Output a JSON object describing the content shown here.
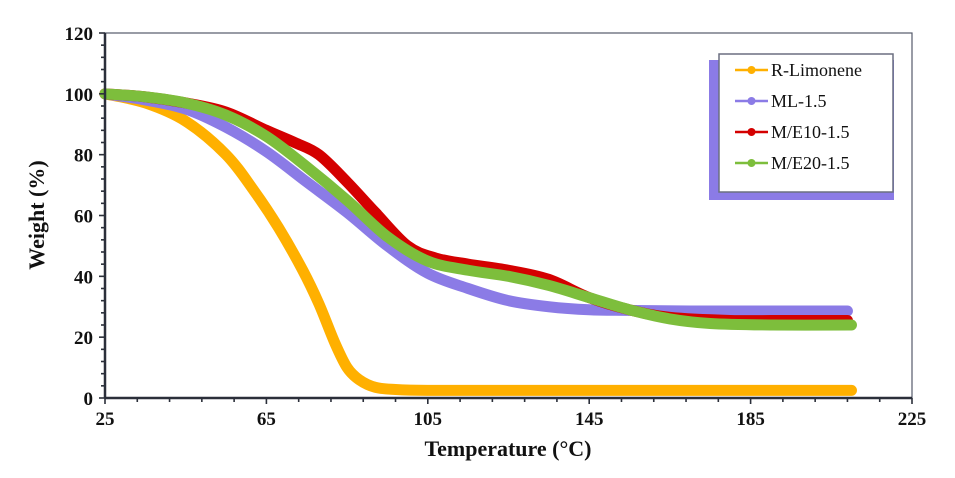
{
  "chart_data": {
    "type": "line",
    "title": "",
    "xlabel": "Temperature (°C)",
    "ylabel": "Weight (%)",
    "xlim": [
      25,
      225
    ],
    "ylim": [
      0,
      120
    ],
    "xticks": [
      25,
      65,
      105,
      145,
      185,
      225
    ],
    "yticks": [
      0,
      20,
      40,
      60,
      80,
      100,
      120
    ],
    "xtick_labels": [
      "25",
      "65",
      "105",
      "145",
      "185",
      "225"
    ],
    "ytick_labels": [
      "0",
      "20",
      "40",
      "60",
      "80",
      "100",
      "120"
    ],
    "grid": false,
    "legend_position": "top-right",
    "series": [
      {
        "name": "R-Limonene",
        "color": "#FFB000",
        "x": [
          25,
          35,
          45,
          55,
          62,
          68,
          74,
          78,
          82,
          85,
          88,
          92,
          97,
          105,
          120,
          150,
          180,
          210
        ],
        "y": [
          100,
          97,
          91,
          80,
          68,
          56,
          42,
          31,
          18,
          10,
          6,
          3.5,
          2.8,
          2.5,
          2.5,
          2.5,
          2.5,
          2.5
        ]
      },
      {
        "name": "ML-1.5",
        "color": "#8B7BE6",
        "x": [
          25,
          35,
          45,
          55,
          65,
          75,
          85,
          95,
          105,
          115,
          125,
          135,
          145,
          155,
          170,
          190,
          209
        ],
        "y": [
          100,
          98,
          95,
          89,
          81,
          71,
          61,
          50,
          41,
          36,
          32,
          30,
          29,
          28.8,
          28.6,
          28.6,
          28.6
        ]
      },
      {
        "name": "M/E10-1.5",
        "color": "#D40000",
        "x": [
          25,
          35,
          45,
          55,
          65,
          72,
          78,
          85,
          92,
          100,
          107,
          115,
          125,
          135,
          145,
          155,
          165,
          180,
          195,
          209
        ],
        "y": [
          100,
          99,
          97,
          94,
          88,
          84,
          80,
          71,
          61,
          50,
          46,
          44,
          42,
          39,
          33,
          29,
          26.5,
          25.5,
          25.5,
          25.5
        ]
      },
      {
        "name": "M/E20-1.5",
        "color": "#7DBE3C",
        "x": [
          25,
          35,
          45,
          55,
          65,
          75,
          85,
          95,
          105,
          115,
          125,
          135,
          145,
          155,
          165,
          175,
          190,
          210
        ],
        "y": [
          100,
          99,
          97,
          93,
          86,
          76,
          65,
          53,
          45,
          42,
          40,
          37,
          33,
          29,
          26,
          24.5,
          24,
          24
        ]
      }
    ]
  }
}
